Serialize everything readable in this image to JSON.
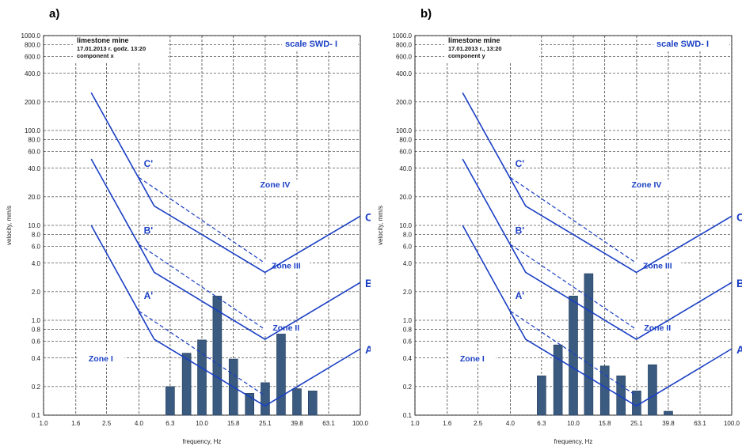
{
  "colors": {
    "limit_line": "#1a3fc4",
    "bar_fill": "#3a5a80",
    "bar_stroke": "#1e3a5a",
    "grid": "#000000"
  },
  "y_tick_labels": [
    "0.1",
    "0.2",
    "0.4",
    "0.6",
    "0.8",
    "1.0",
    "2.0",
    "4.0",
    "6.0",
    "8.0",
    "10.0",
    "20.0",
    "40.0",
    "60.0",
    "80.0",
    "100.0",
    "200.0",
    "400.0",
    "600.0",
    "800.0",
    "1000.0"
  ],
  "x_tick_labels": [
    "1.0",
    "1.6",
    "2.5",
    "4.0",
    "6.3",
    "10.0",
    "15.8",
    "25.1",
    "39.8",
    "63.1",
    "100.0"
  ],
  "chart_data": [
    {
      "type": "bar",
      "panel_label": "a)",
      "info": [
        "limestone mine",
        "17.01.2013 r. godz. 13:20",
        "component x"
      ],
      "scale_label": "scale SWD- I",
      "xlabel": "frequency, Hz",
      "ylabel": "velocity, mm/s",
      "x_scale": "log",
      "y_scale": "log",
      "xlim": [
        1.0,
        100.0
      ],
      "ylim": [
        0.1,
        1000.0
      ],
      "grid": true,
      "zones": [
        {
          "label": "Zone I",
          "x": 2.3,
          "y": 0.37
        },
        {
          "label": "Zone II",
          "x": 34,
          "y": 0.78
        },
        {
          "label": "Zone III",
          "x": 34,
          "y": 3.5
        },
        {
          "label": "Zone IV",
          "x": 29,
          "y": 25
        }
      ],
      "limit_curves": [
        {
          "name": "A",
          "points": [
            [
              2,
              10
            ],
            [
              5,
              0.63
            ],
            [
              25,
              0.125
            ],
            [
              100,
              0.5
            ]
          ]
        },
        {
          "name": "B",
          "points": [
            [
              2,
              50
            ],
            [
              5,
              3.2
            ],
            [
              25,
              0.63
            ],
            [
              100,
              2.5
            ]
          ]
        },
        {
          "name": "C",
          "points": [
            [
              2,
              250
            ],
            [
              5,
              16
            ],
            [
              25,
              3.2
            ],
            [
              100,
              12.5
            ]
          ]
        }
      ],
      "dashed_curves": [
        {
          "name": "A'",
          "points": [
            [
              4,
              1.25
            ],
            [
              25,
              0.16
            ]
          ],
          "label_at": [
            4.2,
            1.5
          ]
        },
        {
          "name": "B'",
          "points": [
            [
              4,
              6.3
            ],
            [
              25,
              0.8
            ]
          ],
          "label_at": [
            4.2,
            7.3
          ]
        },
        {
          "name": "C'",
          "points": [
            [
              4,
              32
            ],
            [
              25,
              4.0
            ]
          ],
          "label_at": [
            4.2,
            37
          ]
        }
      ],
      "bars": [
        {
          "x": 6.3,
          "value": 0.2
        },
        {
          "x": 8.0,
          "value": 0.45
        },
        {
          "x": 10.0,
          "value": 0.62
        },
        {
          "x": 12.5,
          "value": 1.8
        },
        {
          "x": 15.8,
          "value": 0.39
        },
        {
          "x": 20.0,
          "value": 0.17
        },
        {
          "x": 25.1,
          "value": 0.22
        },
        {
          "x": 31.6,
          "value": 0.82
        },
        {
          "x": 39.8,
          "value": 0.19
        },
        {
          "x": 50.0,
          "value": 0.18
        }
      ]
    },
    {
      "type": "bar",
      "panel_label": "b)",
      "info": [
        "limestone mine",
        "17.01.2013 r., 13:20",
        "component y"
      ],
      "scale_label": "scale SWD- I",
      "xlabel": "frequency, Hz",
      "ylabel": "velocity, mm/s",
      "x_scale": "log",
      "y_scale": "log",
      "xlim": [
        1.0,
        100.0
      ],
      "ylim": [
        0.1,
        1000.0
      ],
      "grid": true,
      "zones": [
        {
          "label": "Zone I",
          "x": 2.3,
          "y": 0.37
        },
        {
          "label": "Zone II",
          "x": 34,
          "y": 0.78
        },
        {
          "label": "Zone III",
          "x": 34,
          "y": 3.5
        },
        {
          "label": "Zone IV",
          "x": 29,
          "y": 25
        }
      ],
      "limit_curves": [
        {
          "name": "A",
          "points": [
            [
              2,
              10
            ],
            [
              5,
              0.63
            ],
            [
              25,
              0.125
            ],
            [
              100,
              0.5
            ]
          ]
        },
        {
          "name": "B",
          "points": [
            [
              2,
              50
            ],
            [
              5,
              3.2
            ],
            [
              25,
              0.63
            ],
            [
              100,
              2.5
            ]
          ]
        },
        {
          "name": "C",
          "points": [
            [
              2,
              250
            ],
            [
              5,
              16
            ],
            [
              25,
              3.2
            ],
            [
              100,
              12.5
            ]
          ]
        }
      ],
      "dashed_curves": [
        {
          "name": "A'",
          "points": [
            [
              4,
              1.25
            ],
            [
              25,
              0.16
            ]
          ],
          "label_at": [
            4.2,
            1.5
          ]
        },
        {
          "name": "B'",
          "points": [
            [
              4,
              6.3
            ],
            [
              25,
              0.8
            ]
          ],
          "label_at": [
            4.2,
            7.3
          ]
        },
        {
          "name": "C'",
          "points": [
            [
              4,
              32
            ],
            [
              25,
              4.0
            ]
          ],
          "label_at": [
            4.2,
            37
          ]
        }
      ],
      "bars": [
        {
          "x": 6.3,
          "value": 0.26
        },
        {
          "x": 8.0,
          "value": 0.55
        },
        {
          "x": 10.0,
          "value": 1.8
        },
        {
          "x": 12.5,
          "value": 3.1
        },
        {
          "x": 15.8,
          "value": 0.33
        },
        {
          "x": 20.0,
          "value": 0.26
        },
        {
          "x": 25.1,
          "value": 0.18
        },
        {
          "x": 31.6,
          "value": 0.34
        },
        {
          "x": 39.8,
          "value": 0.11
        }
      ]
    }
  ]
}
